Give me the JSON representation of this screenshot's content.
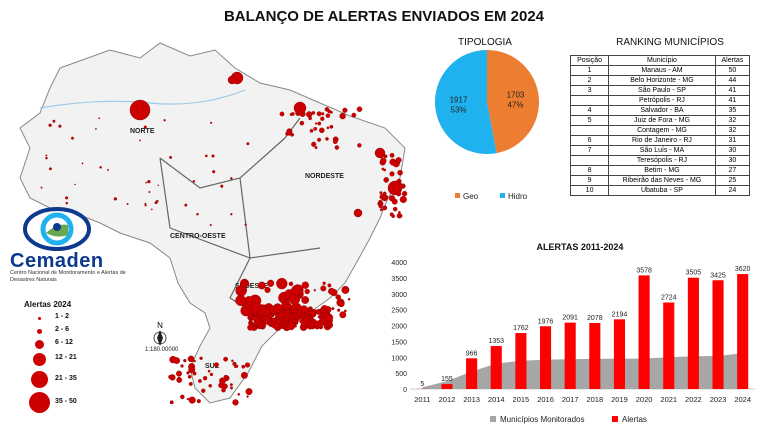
{
  "title": "BALANÇO DE ALERTAS ENVIADOS EM 2024",
  "map": {
    "regions": [
      "NORTE",
      "NORDESTE",
      "CENTRO-OESTE",
      "SUDESTE",
      "SUL"
    ],
    "scale": "1:180.00000",
    "north_symbol": "N"
  },
  "logo": {
    "name": "Cemaden",
    "subtitle": "Centro Nacional de Monitoramento e Alertas de Desastres Naturais"
  },
  "legend": {
    "title": "Alertas 2024",
    "items": [
      "1 - 2",
      "2 - 6",
      "6 - 12",
      "12 - 21",
      "21 - 35",
      "35 - 50"
    ],
    "color": "#cc0000"
  },
  "tipologia": {
    "title": "TIPOLOGIA",
    "slices": [
      {
        "name": "Geo",
        "value": 1703,
        "percent": "47%",
        "color": "#ed7d31"
      },
      {
        "name": "Hidro",
        "value": 1917,
        "percent": "53%",
        "color": "#1fb2ee"
      }
    ]
  },
  "ranking": {
    "title": "RANKING MUNICÍPIOS",
    "headers": [
      "Posição",
      "Município",
      "Alertas"
    ],
    "rows": [
      {
        "pos": "1",
        "city": "Manaus - AM",
        "alerts": "50"
      },
      {
        "pos": "2",
        "city": "Belo Horizonte - MG",
        "alerts": "44"
      },
      {
        "pos": "3",
        "city": "São Paulo - SP",
        "alerts": "41"
      },
      {
        "pos": "",
        "city": "Petrópolis - RJ",
        "alerts": "41"
      },
      {
        "pos": "4",
        "city": "Salvador - BA",
        "alerts": "35"
      },
      {
        "pos": "5",
        "city": "Juiz de Fora - MG",
        "alerts": "32"
      },
      {
        "pos": "",
        "city": "Contagem - MG",
        "alerts": "32"
      },
      {
        "pos": "6",
        "city": "Rio de Janeiro - RJ",
        "alerts": "31"
      },
      {
        "pos": "7",
        "city": "São Luís - MA",
        "alerts": "30"
      },
      {
        "pos": "",
        "city": "Teresópolis - RJ",
        "alerts": "30"
      },
      {
        "pos": "8",
        "city": "Betim - MG",
        "alerts": "27"
      },
      {
        "pos": "9",
        "city": "Ribeirão das Neves - MG",
        "alerts": "25"
      },
      {
        "pos": "10",
        "city": "Ubatuba - SP",
        "alerts": "24"
      }
    ]
  },
  "chart_data": [
    {
      "type": "pie",
      "title": "TIPOLOGIA",
      "categories": [
        "Geo",
        "Hidro"
      ],
      "values": [
        1703,
        1917
      ],
      "labels": [
        "47%",
        "53%"
      ]
    },
    {
      "type": "bar",
      "title": "ALERTAS 2011-2024",
      "categories": [
        "2011",
        "2012",
        "2013",
        "2014",
        "2015",
        "2016",
        "2017",
        "2018",
        "2019",
        "2020",
        "2021",
        "2022",
        "2023",
        "2024"
      ],
      "ylim": [
        0,
        4000
      ],
      "yticks": [
        0,
        500,
        1000,
        1500,
        2000,
        2500,
        3000,
        3500,
        4000
      ],
      "grid": false,
      "legend": "bottom",
      "series": [
        {
          "name": "Municípios Monitorados",
          "type": "area",
          "color": "#a6a6a6",
          "values": [
            50,
            250,
            550,
            800,
            890,
            920,
            940,
            950,
            957,
            959,
            1000,
            1030,
            1040,
            1130
          ]
        },
        {
          "name": "Alertas",
          "type": "bar",
          "color": "#ff0000",
          "values": [
            5,
            155,
            966,
            1353,
            1762,
            1976,
            2091,
            2078,
            2194,
            3578,
            2724,
            3505,
            3425,
            3620
          ],
          "labels": [
            "5",
            "155",
            "966",
            "1353",
            "1762",
            "1976",
            "2091",
            "2078",
            "2194",
            "3578",
            "2724",
            "3505",
            "3425",
            "3620"
          ]
        }
      ]
    }
  ]
}
